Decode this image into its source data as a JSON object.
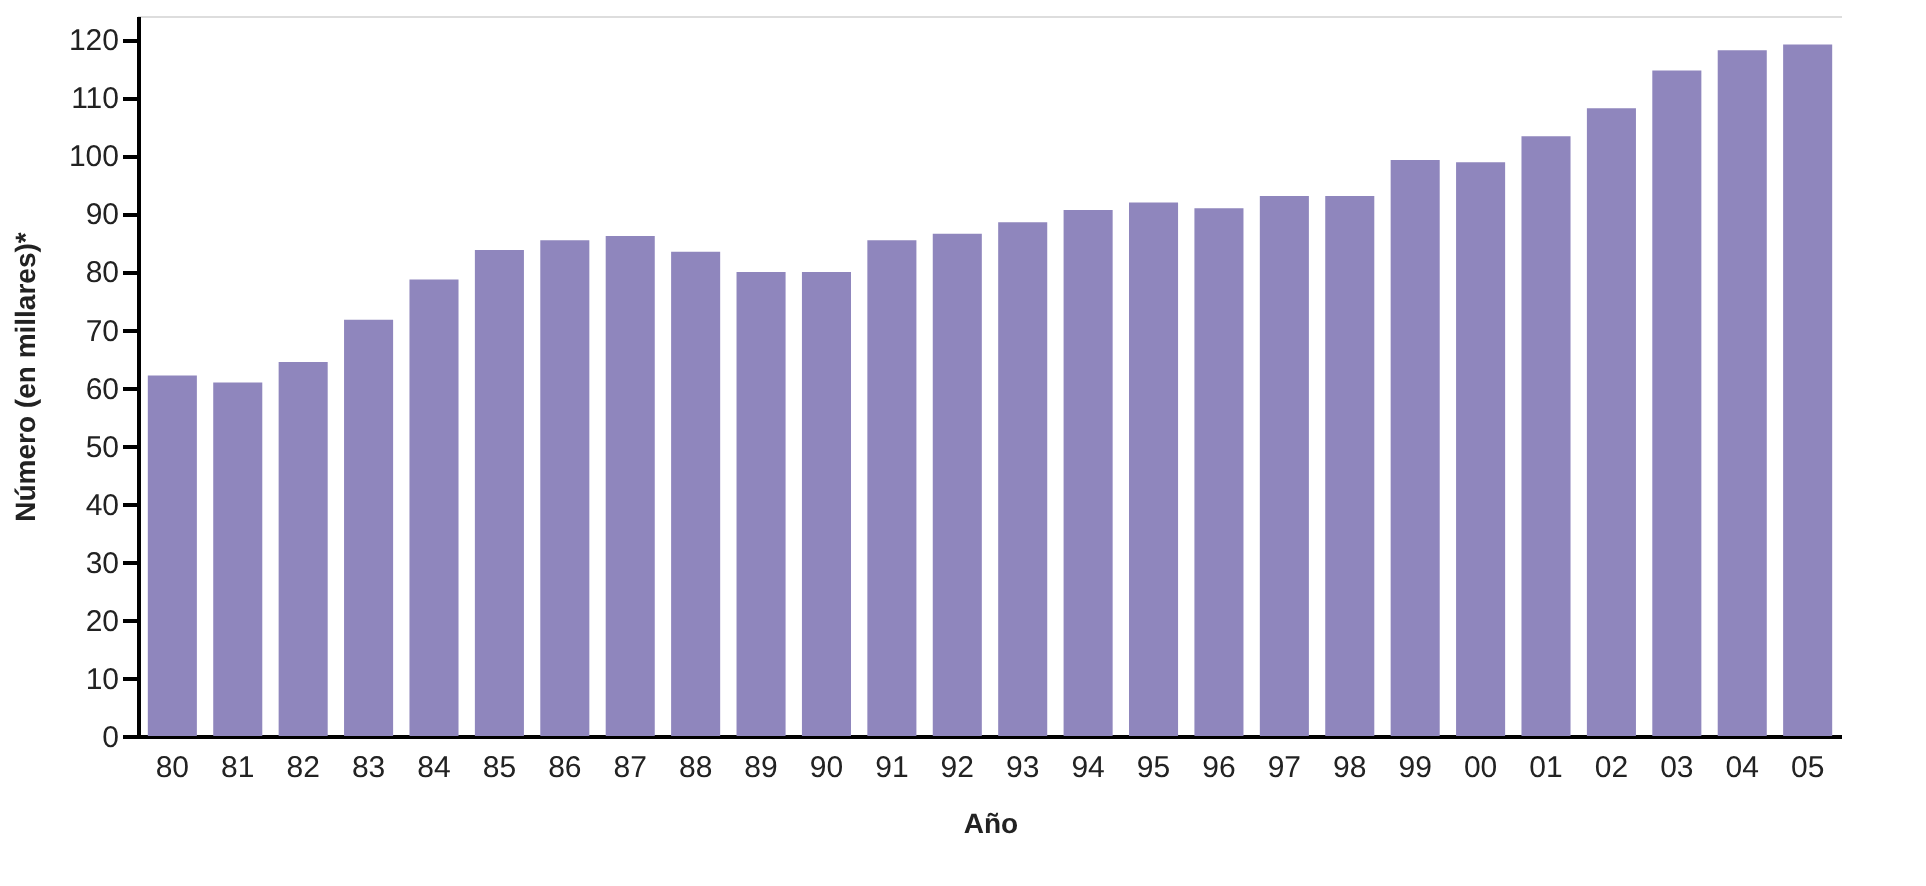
{
  "chart_data": {
    "type": "bar",
    "xlabel": "Año",
    "ylabel": "Número (en millares)*",
    "categories": [
      "80",
      "81",
      "82",
      "83",
      "84",
      "85",
      "86",
      "87",
      "88",
      "89",
      "90",
      "91",
      "92",
      "93",
      "94",
      "95",
      "96",
      "97",
      "98",
      "99",
      "00",
      "01",
      "02",
      "03",
      "04",
      "05"
    ],
    "values": [
      62.1,
      60.9,
      64.4,
      71.7,
      78.6,
      83.7,
      85.4,
      86.1,
      83.4,
      79.9,
      79.9,
      85.4,
      86.5,
      88.5,
      90.6,
      91.9,
      90.9,
      93.0,
      93.0,
      99.2,
      98.8,
      103.3,
      108.1,
      114.6,
      118.1,
      119.1
    ],
    "color": "#8f86bd",
    "ylim": [
      0,
      124
    ],
    "yticks": [
      0,
      10,
      20,
      30,
      40,
      50,
      60,
      70,
      80,
      90,
      100,
      110,
      120
    ],
    "grid": false
  }
}
